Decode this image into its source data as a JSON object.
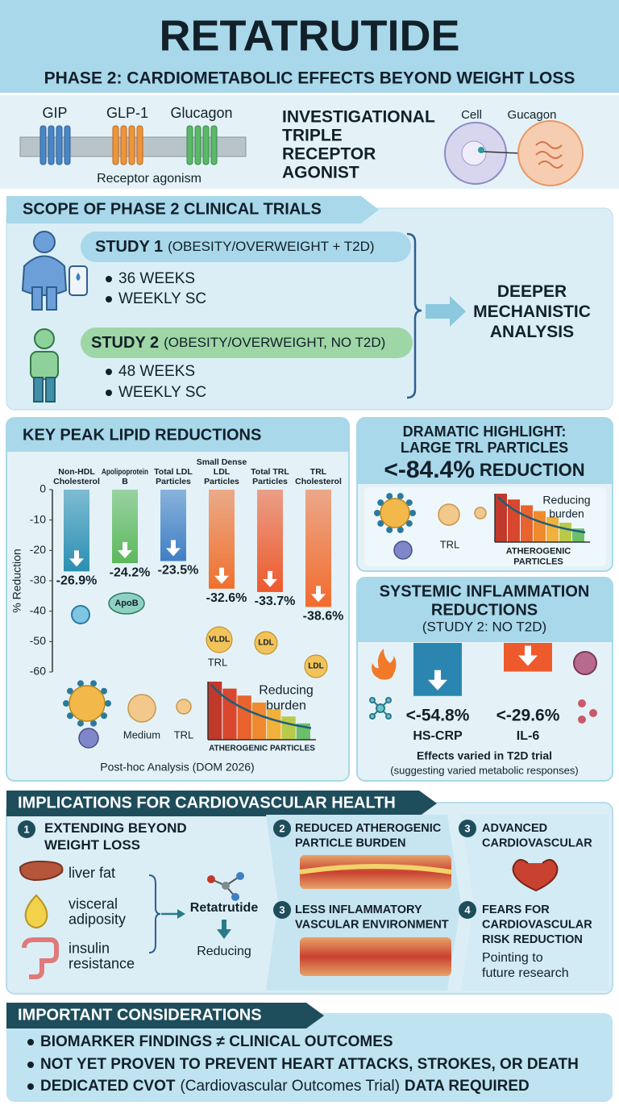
{
  "header": {
    "title": "RETATRUTIDE",
    "subtitle": "PHASE 2: CARDIOMETABOLIC EFFECTS BEYOND WEIGHT LOSS"
  },
  "receptors": {
    "labels": [
      "GIP",
      "GLP-1",
      "Glucagon"
    ],
    "caption": "Receptor agonism",
    "class": "INVESTIGATIONAL TRIPLE RECEPTOR AGONIST",
    "cell_labels": [
      "Cell",
      "Gucagon"
    ]
  },
  "scope": {
    "title": "SCOPE OF PHASE 2 CLINICAL TRIALS",
    "studies": [
      {
        "name": "STUDY 1",
        "detail": "(OBESITY/OVERWEIGHT + T2D)",
        "items": [
          "36 WEEKS",
          "WEEKLY SC"
        ]
      },
      {
        "name": "STUDY 2",
        "detail": "(OBESITY/OVERWEIGHT, NO T2D)",
        "items": [
          "48 WEEKS",
          "WEEKLY SC"
        ]
      }
    ],
    "outcome": "DEEPER MECHANISTIC ANALYSIS"
  },
  "chart_data": [
    {
      "type": "bar",
      "title": "KEY PEAK LIPID REDUCTIONS",
      "ylabel": "% Reduction",
      "categories": [
        "Non-HDL Cholesterol",
        "Apolipoprotein B",
        "Total LDL Particles",
        "Small Dense LDL Particles",
        "Total TRL Particles",
        "TRL Cholesterol"
      ],
      "values": [
        -26.9,
        -24.2,
        -23.5,
        -32.6,
        -33.7,
        -38.6
      ],
      "value_labels": [
        "-26.9%",
        "-24.2%",
        "-23.5%",
        "-32.6%",
        "-33.7%",
        "-38.6%"
      ],
      "colors": [
        "#2b8fb3",
        "#5cb85c",
        "#3f7fc4",
        "#f0702d",
        "#ee5a2c",
        "#f26b2e"
      ],
      "ylim": [
        -60,
        0
      ],
      "yticks": [
        0,
        -10,
        -20,
        -30,
        -40,
        -50,
        -60
      ],
      "annotations": [
        "ApoB",
        "VLDL",
        "TRL",
        "LDL",
        "LDL"
      ],
      "particle_labels": [
        "Medium",
        "TRL"
      ],
      "burden_label": "Reducing burden",
      "burden_axis": "ATHEROGENIC PARTICLES",
      "footnote": "Post-hoc Analysis (DOM 2026)"
    },
    {
      "type": "bar",
      "title": "SYSTEMIC INFLAMMATION REDUCTIONS",
      "subtitle": "(STUDY 2: NO T2D)",
      "categories": [
        "HS-CRP",
        "IL-6"
      ],
      "values": [
        -54.8,
        -29.6
      ],
      "value_labels": [
        "<-54.8%",
        "<-29.6%"
      ],
      "colors": [
        "#2a86b0",
        "#ef5a2c"
      ],
      "notes": [
        "Effects varied in T2D trial",
        "(suggesting varied metabolic responses)"
      ]
    }
  ],
  "highlight": {
    "title": "DRAMATIC HIGHLIGHT: LARGE TRL PARTICLES",
    "value": "<-84.4%",
    "suffix": "REDUCTION",
    "particle_label": "TRL",
    "burden_label": "Reducing burden",
    "burden_axis": "ATHEROGENIC PARTICLES"
  },
  "implications": {
    "title": "IMPLICATIONS FOR CARDIOVASCULAR HEALTH",
    "items": [
      {
        "num": "1",
        "title": "EXTENDING BEYOND WEIGHT LOSS"
      },
      {
        "num": "2",
        "title": "REDUCED ATHEROGENIC PARTICLE BURDEN"
      },
      {
        "num": "3",
        "title": "LESS INFLAMMATORY VASCULAR ENVIRONMENT"
      },
      {
        "num": "3",
        "title": "ADVANCED CARDIOVASCULAR"
      },
      {
        "num": "4",
        "title": "FEARS FOR CARDIOVASCULAR RISK REDUCTION",
        "note": "Pointing to future research"
      }
    ],
    "factors": [
      "liver fat",
      "visceral adiposity",
      "insulin resistance"
    ],
    "drug": "Retatrutide",
    "effect": "Reducing"
  },
  "considerations": {
    "title": "IMPORTANT CONSIDERATIONS",
    "items": [
      "BIOMARKER FINDINGS ≠ CLINICAL OUTCOMES",
      "NOT YET PROVEN TO PREVENT HEART ATTACKS, STROKES, OR DEATH"
    ],
    "last": {
      "lead": "DEDICATED CVOT",
      "detail": "(Cardiovascular Outcomes Trial)",
      "tail": "DATA REQUIRED"
    }
  }
}
